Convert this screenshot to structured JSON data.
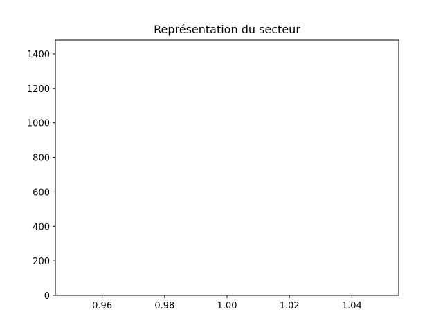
{
  "chart_data": {
    "type": "line",
    "title": "Représentation du secteur",
    "xlabel": "",
    "ylabel": "",
    "xlim": [
      0.945,
      1.055
    ],
    "ylim": [
      0,
      1480
    ],
    "x_ticks": [
      0.96,
      0.98,
      1.0,
      1.02,
      1.04
    ],
    "x_tick_labels": [
      "0.96",
      "0.98",
      "1.00",
      "1.02",
      "1.04"
    ],
    "y_ticks": [
      0,
      200,
      400,
      600,
      800,
      1000,
      1200,
      1400
    ],
    "y_tick_labels": [
      "0",
      "200",
      "400",
      "600",
      "800",
      "1000",
      "1200",
      "1400"
    ],
    "series": [],
    "grid": false,
    "legend": false,
    "colors": {
      "axis": "#000000",
      "background": "#ffffff"
    }
  }
}
